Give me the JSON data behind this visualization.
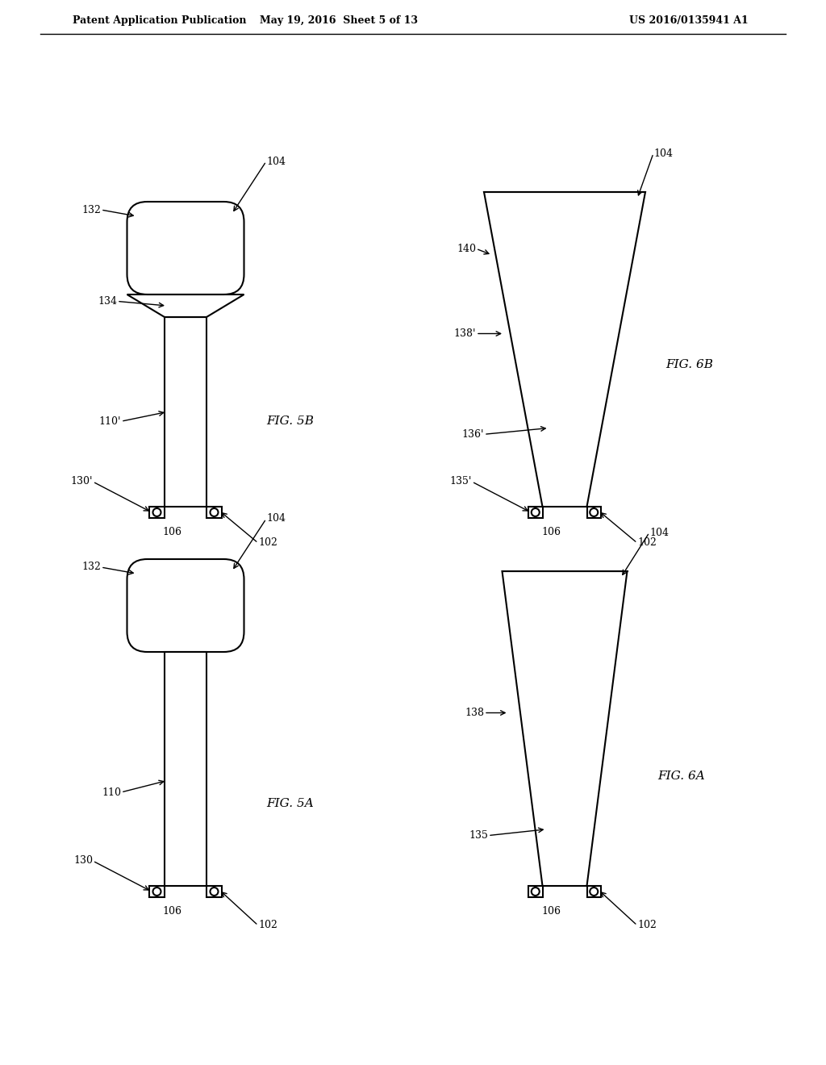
{
  "header_left": "Patent Application Publication",
  "header_mid": "May 19, 2016  Sheet 5 of 13",
  "header_right": "US 2016/0135941 A1",
  "bg_color": "#ffffff",
  "line_color": "#000000"
}
